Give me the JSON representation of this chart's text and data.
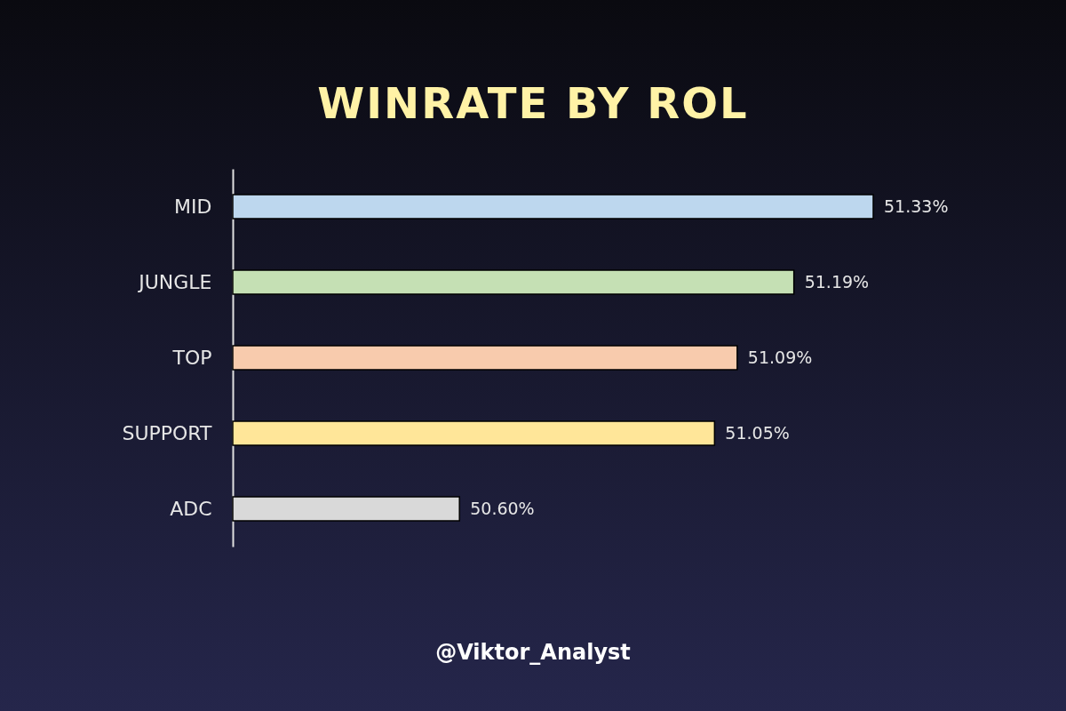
{
  "chart_data": {
    "type": "bar",
    "orientation": "horizontal",
    "title": "WINRATE BY ROL",
    "categories": [
      "MID",
      "JUNGLE",
      "TOP",
      "SUPPORT",
      "ADC"
    ],
    "values": [
      51.33,
      51.19,
      51.09,
      51.05,
      50.6
    ],
    "value_labels": [
      "51.33%",
      "51.19%",
      "51.09%",
      "51.05%",
      "50.60%"
    ],
    "colors": [
      "#bdd7ee",
      "#c5e0b4",
      "#f8cbad",
      "#ffe699",
      "#d9d9d9"
    ],
    "xlim": [
      50.2,
      51.33
    ],
    "tick_labels": "y",
    "annotations": [
      "@Viktor_Analyst"
    ]
  }
}
